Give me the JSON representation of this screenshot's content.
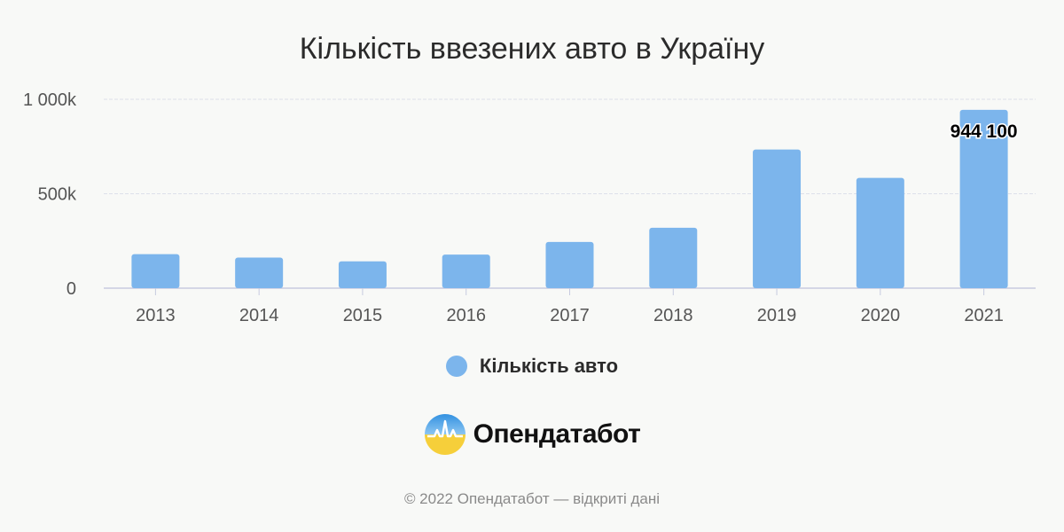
{
  "chart_data": {
    "type": "bar",
    "title": "Кількість ввезених авто в Україну",
    "categories": [
      "2013",
      "2014",
      "2015",
      "2016",
      "2017",
      "2018",
      "2019",
      "2020",
      "2021"
    ],
    "series": [
      {
        "name": "Кількість авто",
        "values": [
          180000,
          162000,
          142000,
          178000,
          245000,
          320000,
          734000,
          584000,
          944100
        ],
        "color": "#7cb5ec"
      }
    ],
    "ylim": [
      0,
      1000000
    ],
    "yticks": [
      {
        "value": 0,
        "label": "0"
      },
      {
        "value": 500000,
        "label": "500k"
      },
      {
        "value": 1000000,
        "label": "1 000k"
      }
    ],
    "data_labels": [
      {
        "category": "2021",
        "text": "944 100"
      }
    ],
    "grid": true,
    "legend_position": "bottom-center"
  },
  "logo": {
    "text": "Опендатабот",
    "icon": "opendatabot-logo-icon"
  },
  "footer": "© 2022 Опендатабот — відкриті дані"
}
